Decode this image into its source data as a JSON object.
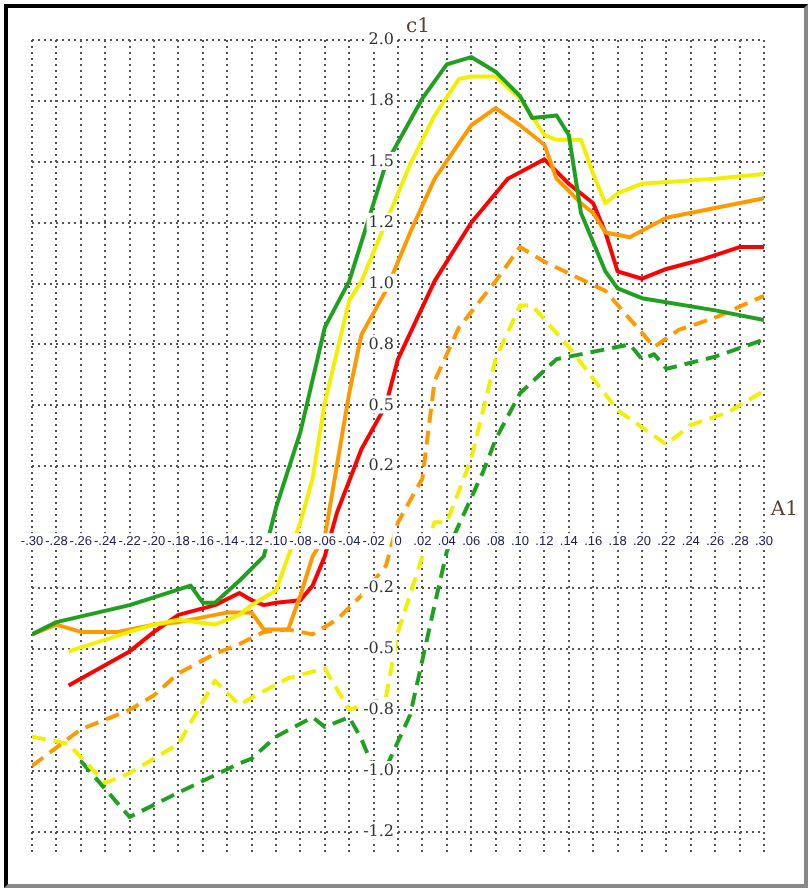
{
  "chart_data": {
    "type": "line",
    "xlabel": "A1",
    "ylabel": "c1",
    "xlim": [
      -0.3,
      0.3
    ],
    "ylim": [
      -1.35,
      2.0
    ],
    "xticks": [
      {
        "value": -0.3,
        "label": "-.30"
      },
      {
        "value": -0.28,
        "label": "-.28"
      },
      {
        "value": -0.26,
        "label": "-.26"
      },
      {
        "value": -0.24,
        "label": "-.24"
      },
      {
        "value": -0.22,
        "label": "-.22"
      },
      {
        "value": -0.2,
        "label": "-.20"
      },
      {
        "value": -0.18,
        "label": "-.18"
      },
      {
        "value": -0.16,
        "label": "-.16"
      },
      {
        "value": -0.14,
        "label": "-.14"
      },
      {
        "value": -0.12,
        "label": "-.12"
      },
      {
        "value": -0.1,
        "label": "-.10"
      },
      {
        "value": -0.08,
        "label": "-.08"
      },
      {
        "value": -0.06,
        "label": "-.06"
      },
      {
        "value": -0.04,
        "label": "-.04"
      },
      {
        "value": -0.02,
        "label": "-.02"
      },
      {
        "value": 0,
        "label": "0"
      },
      {
        "value": 0.02,
        "label": ".02"
      },
      {
        "value": 0.04,
        "label": ".04"
      },
      {
        "value": 0.06,
        "label": ".06"
      },
      {
        "value": 0.08,
        "label": ".08"
      },
      {
        "value": 0.1,
        "label": ".10"
      },
      {
        "value": 0.12,
        "label": ".12"
      },
      {
        "value": 0.14,
        "label": ".14"
      },
      {
        "value": 0.16,
        "label": ".16"
      },
      {
        "value": 0.18,
        "label": ".18"
      },
      {
        "value": 0.2,
        "label": ".20"
      },
      {
        "value": 0.22,
        "label": ".22"
      },
      {
        "value": 0.24,
        "label": ".24"
      },
      {
        "value": 0.26,
        "label": ".26"
      },
      {
        "value": 0.28,
        "label": ".28"
      },
      {
        "value": 0.3,
        "label": ".30"
      }
    ],
    "yticks": [
      {
        "value": -1.25,
        "label": "-1.2"
      },
      {
        "value": -1,
        "label": "-1.0"
      },
      {
        "value": -0.75,
        "label": "-0.8"
      },
      {
        "value": -0.5,
        "label": "-0.5"
      },
      {
        "value": -0.25,
        "label": "-0.2"
      },
      {
        "value": 0.25,
        "label": "0.2"
      },
      {
        "value": 0.5,
        "label": "0.5"
      },
      {
        "value": 0.75,
        "label": "0.8"
      },
      {
        "value": 1,
        "label": "1.0"
      },
      {
        "value": 1.25,
        "label": "1.2"
      },
      {
        "value": 1.5,
        "label": "1.5"
      },
      {
        "value": 1.75,
        "label": "1.8"
      },
      {
        "value": 2,
        "label": "2.0"
      }
    ],
    "grid": true,
    "marker": "none",
    "series": [
      {
        "color": "#1fa01f",
        "line_style": "solid",
        "x": [
          -0.3,
          -0.28,
          -0.22,
          -0.17,
          -0.16,
          -0.15,
          -0.13,
          -0.11,
          -0.1,
          -0.08,
          -0.06,
          -0.04,
          -0.01,
          0.02,
          0.04,
          0.06,
          0.08,
          0.1,
          0.11,
          0.13,
          0.14,
          0.15,
          0.17,
          0.18,
          0.2,
          0.26,
          0.3
        ],
        "values": [
          -0.44,
          -0.39,
          -0.32,
          -0.24,
          -0.31,
          -0.31,
          -0.22,
          -0.12,
          0.08,
          0.39,
          0.82,
          1.01,
          1.49,
          1.76,
          1.9,
          1.93,
          1.87,
          1.77,
          1.68,
          1.69,
          1.61,
          1.29,
          1.05,
          0.98,
          0.94,
          0.89,
          0.85
        ]
      },
      {
        "color": "#f0f000",
        "line_style": "solid",
        "x": [
          -0.27,
          -0.22,
          -0.2,
          -0.18,
          -0.15,
          -0.13,
          -0.12,
          -0.1,
          -0.09,
          -0.08,
          -0.07,
          -0.06,
          -0.04,
          -0.03,
          0.01,
          0.03,
          0.05,
          0.06,
          0.08,
          0.1,
          0.12,
          0.13,
          0.15,
          0.16,
          0.17,
          0.18,
          0.2,
          0.26,
          0.3
        ],
        "values": [
          -0.51,
          -0.43,
          -0.4,
          -0.38,
          -0.4,
          -0.36,
          -0.32,
          -0.26,
          -0.12,
          0.02,
          0.2,
          0.51,
          0.93,
          1.01,
          1.49,
          1.69,
          1.84,
          1.85,
          1.85,
          1.76,
          1.61,
          1.59,
          1.59,
          1.45,
          1.33,
          1.37,
          1.41,
          1.43,
          1.45
        ]
      },
      {
        "color": "#ff9900",
        "line_style": "solid",
        "x": [
          -0.3,
          -0.28,
          -0.26,
          -0.23,
          -0.2,
          -0.18,
          -0.15,
          -0.14,
          -0.12,
          -0.11,
          -0.09,
          -0.08,
          -0.07,
          -0.06,
          -0.04,
          -0.03,
          -0.01,
          0.01,
          0.03,
          0.06,
          0.08,
          0.1,
          0.12,
          0.13,
          0.15,
          0.16,
          0.17,
          0.19,
          0.22,
          0.26,
          0.3
        ],
        "values": [
          -0.44,
          -0.4,
          -0.43,
          -0.43,
          -0.4,
          -0.39,
          -0.36,
          -0.35,
          -0.35,
          -0.42,
          -0.42,
          -0.28,
          -0.12,
          -0.04,
          0.55,
          0.79,
          0.97,
          1.21,
          1.43,
          1.65,
          1.72,
          1.65,
          1.57,
          1.43,
          1.33,
          1.29,
          1.21,
          1.19,
          1.27,
          1.31,
          1.35
        ]
      },
      {
        "color": "#ff0000",
        "line_style": "solid",
        "x": [
          -0.27,
          -0.22,
          -0.2,
          -0.18,
          -0.15,
          -0.13,
          -0.12,
          -0.11,
          -0.1,
          -0.08,
          -0.07,
          -0.06,
          -0.05,
          -0.03,
          -0.01,
          0.0,
          0.03,
          0.06,
          0.09,
          0.12,
          0.14,
          0.16,
          0.17,
          0.18,
          0.2,
          0.22,
          0.25,
          0.28,
          0.3
        ],
        "values": [
          -0.65,
          -0.51,
          -0.43,
          -0.36,
          -0.32,
          -0.27,
          -0.3,
          -0.32,
          -0.31,
          -0.3,
          -0.24,
          -0.12,
          0.06,
          0.32,
          0.5,
          0.69,
          1.01,
          1.25,
          1.43,
          1.51,
          1.41,
          1.33,
          1.21,
          1.05,
          1.02,
          1.06,
          1.1,
          1.15,
          1.15
        ]
      },
      {
        "color": "#ff9900",
        "line_style": "dashed",
        "x": [
          -0.3,
          -0.26,
          -0.22,
          -0.2,
          -0.18,
          -0.15,
          -0.13,
          -0.11,
          -0.09,
          -0.07,
          -0.05,
          -0.03,
          -0.01,
          0.0,
          0.02,
          0.03,
          0.05,
          0.08,
          0.1,
          0.12,
          0.17,
          0.21,
          0.23,
          0.26,
          0.3
        ],
        "values": [
          -0.98,
          -0.83,
          -0.75,
          -0.69,
          -0.6,
          -0.52,
          -0.48,
          -0.43,
          -0.42,
          -0.44,
          -0.38,
          -0.28,
          -0.16,
          0.02,
          0.2,
          0.6,
          0.82,
          1.01,
          1.15,
          1.09,
          0.97,
          0.74,
          0.81,
          0.86,
          0.95
        ]
      },
      {
        "color": "#f0f000",
        "line_style": "dashed",
        "x": [
          -0.3,
          -0.27,
          -0.24,
          -0.22,
          -0.18,
          -0.15,
          -0.13,
          -0.12,
          -0.09,
          -0.06,
          -0.04,
          -0.01,
          0.0,
          0.02,
          0.03,
          0.04,
          0.06,
          0.08,
          0.1,
          0.11,
          0.14,
          0.18,
          0.22,
          0.24,
          0.27,
          0.3
        ],
        "values": [
          -0.86,
          -0.89,
          -1.05,
          -1.01,
          -0.89,
          -0.63,
          -0.73,
          -0.7,
          -0.62,
          -0.58,
          -0.75,
          -0.7,
          -0.43,
          -0.12,
          0.02,
          0.02,
          0.28,
          0.69,
          0.91,
          0.91,
          0.74,
          0.48,
          0.34,
          0.42,
          0.47,
          0.56
        ]
      },
      {
        "color": "#1fa01f",
        "line_style": "dashed",
        "x": [
          -0.26,
          -0.22,
          -0.18,
          -0.13,
          -0.12,
          -0.1,
          -0.07,
          -0.06,
          -0.04,
          -0.03,
          -0.02,
          -0.01,
          0.01,
          0.03,
          0.04,
          0.07,
          0.08,
          0.1,
          0.13,
          0.19,
          0.2,
          0.21,
          0.22,
          0.26,
          0.3
        ],
        "values": [
          -0.96,
          -1.19,
          -1.09,
          -0.97,
          -0.95,
          -0.86,
          -0.78,
          -0.82,
          -0.78,
          -0.87,
          -0.99,
          -0.99,
          -0.77,
          -0.32,
          -0.1,
          0.23,
          0.36,
          0.55,
          0.69,
          0.75,
          0.69,
          0.71,
          0.65,
          0.7,
          0.77
        ]
      }
    ]
  }
}
